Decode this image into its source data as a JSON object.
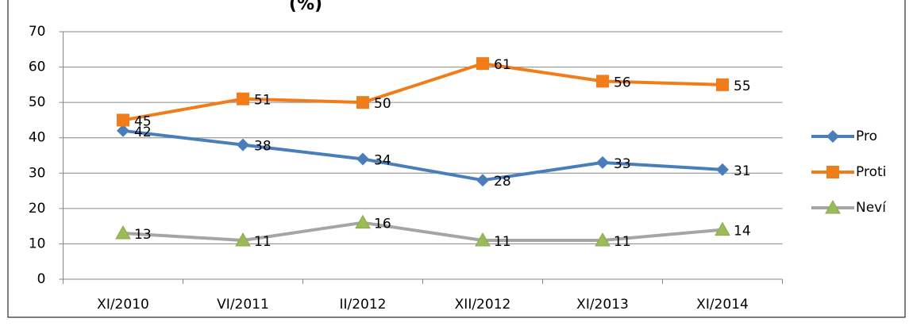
{
  "chart_data": {
    "type": "line",
    "title": "(%)",
    "categories": [
      "XI/2010",
      "VI/2011",
      "II/2012",
      "XII/2012",
      "XI/2013",
      "XI/2014"
    ],
    "series": [
      {
        "name": "Pro",
        "color": "#4a7ebb",
        "marker_color": "#4a7ebb",
        "values": [
          42,
          38,
          34,
          28,
          33,
          31
        ]
      },
      {
        "name": "Proti",
        "color": "#f07d1a",
        "marker_color": "#f07d1a",
        "values": [
          45,
          51,
          50,
          61,
          56,
          55
        ]
      },
      {
        "name": "Neví",
        "color": "#a5a5a5",
        "marker_color": "#9bbb59",
        "values": [
          13,
          11,
          16,
          11,
          11,
          14
        ]
      }
    ],
    "ylim": [
      0,
      70
    ],
    "yticks": [
      0,
      10,
      20,
      30,
      40,
      50,
      60,
      70
    ],
    "grid": true,
    "legend": "right"
  }
}
